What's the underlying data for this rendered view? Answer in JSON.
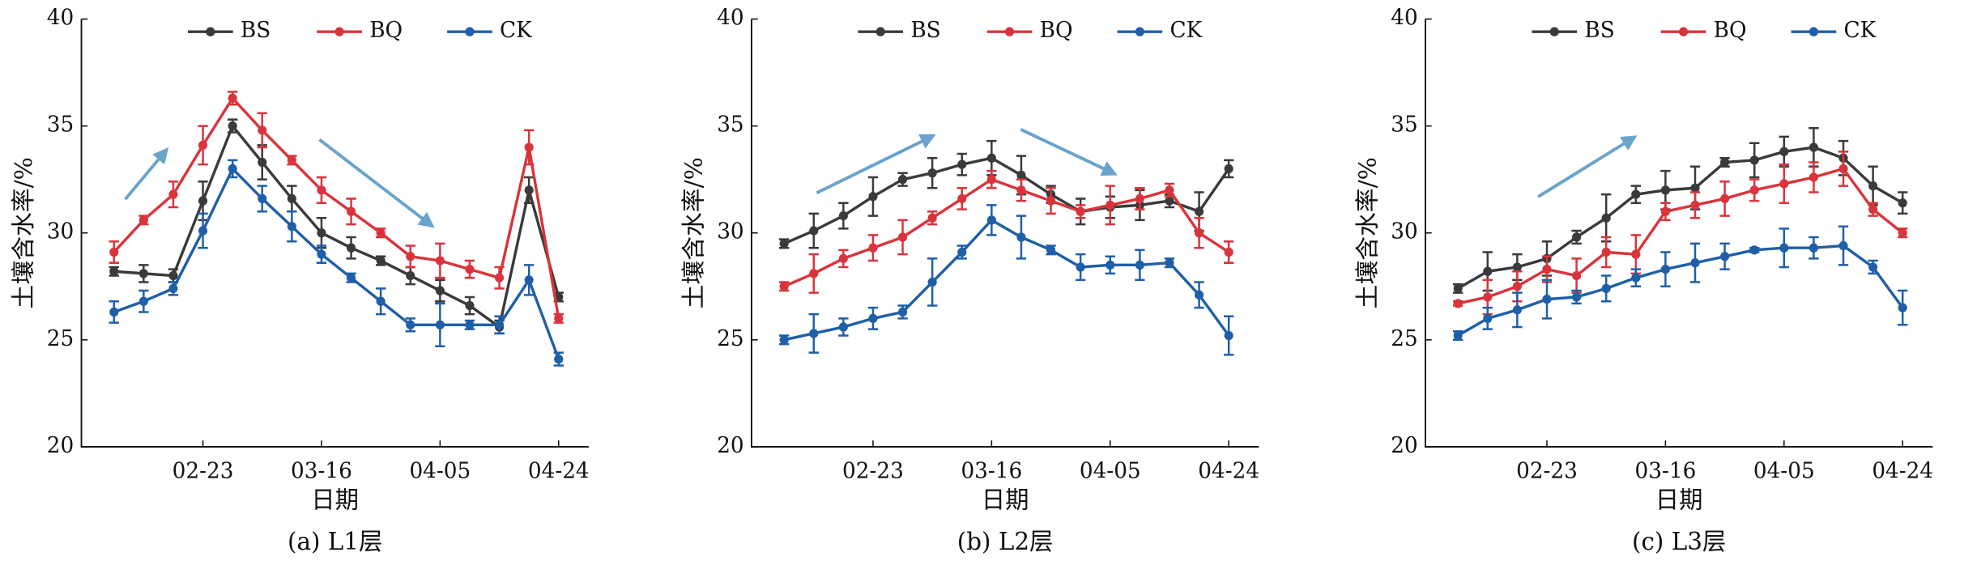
{
  "chart_data": [
    {
      "type": "line",
      "caption": "(a) L1层",
      "xlabel": "日期",
      "ylabel": "土壤含水率/%",
      "categories": [
        null,
        null,
        null,
        "02-23",
        null,
        null,
        null,
        "03-16",
        null,
        null,
        null,
        "04-05",
        null,
        null,
        null,
        "04-24"
      ],
      "ylim": [
        20,
        40
      ],
      "yticks": [
        20,
        25,
        30,
        35,
        40
      ],
      "series": [
        {
          "name": "BS",
          "color": "#3a3a3a",
          "values": [
            28.2,
            28.1,
            28.0,
            31.5,
            35.0,
            33.3,
            31.6,
            30.0,
            29.3,
            28.7,
            28.0,
            27.3,
            26.6,
            25.6,
            32.0,
            27.0
          ],
          "errors": [
            0.2,
            0.4,
            0.3,
            0.9,
            0.3,
            0.8,
            0.6,
            0.7,
            0.5,
            0.2,
            0.4,
            0.5,
            0.4,
            0.3,
            0.6,
            0.2
          ]
        },
        {
          "name": "BQ",
          "color": "#d9343c",
          "values": [
            29.1,
            30.6,
            31.8,
            34.1,
            36.3,
            34.8,
            33.4,
            32.0,
            31.0,
            30.0,
            28.9,
            28.7,
            28.3,
            27.9,
            34.0,
            26.0
          ],
          "errors": [
            0.5,
            0.2,
            0.6,
            0.9,
            0.3,
            0.8,
            0.2,
            0.6,
            0.6,
            0.2,
            0.5,
            0.8,
            0.4,
            0.5,
            0.8,
            0.2
          ]
        },
        {
          "name": "CK",
          "color": "#1f5fa8",
          "values": [
            26.3,
            26.8,
            27.4,
            30.1,
            33.0,
            31.6,
            30.3,
            29.0,
            27.9,
            26.8,
            25.7,
            25.7,
            25.7,
            25.7,
            27.8,
            24.1
          ],
          "errors": [
            0.5,
            0.5,
            0.3,
            0.8,
            0.4,
            0.6,
            0.7,
            0.4,
            0.2,
            0.6,
            0.3,
            1.0,
            0.2,
            0.4,
            0.7,
            0.3
          ]
        }
      ]
    },
    {
      "type": "line",
      "caption": "(b) L2层",
      "xlabel": "日期",
      "ylabel": "土壤含水率/%",
      "categories": [
        null,
        null,
        null,
        "02-23",
        null,
        null,
        null,
        "03-16",
        null,
        null,
        null,
        "04-05",
        null,
        null,
        null,
        "04-24"
      ],
      "ylim": [
        20,
        40
      ],
      "yticks": [
        20,
        25,
        30,
        35,
        40
      ],
      "series": [
        {
          "name": "BS",
          "color": "#3a3a3a",
          "values": [
            29.5,
            30.1,
            30.8,
            31.7,
            32.5,
            32.8,
            33.2,
            33.5,
            32.7,
            31.8,
            31.0,
            31.2,
            31.3,
            31.5,
            31.0,
            33.0
          ],
          "errors": [
            0.2,
            0.8,
            0.6,
            0.9,
            0.3,
            0.7,
            0.5,
            0.8,
            0.9,
            0.4,
            0.6,
            0.5,
            0.7,
            0.3,
            0.9,
            0.4
          ]
        },
        {
          "name": "BQ",
          "color": "#d9343c",
          "values": [
            27.5,
            28.1,
            28.8,
            29.3,
            29.8,
            30.7,
            31.6,
            32.5,
            32.0,
            31.5,
            31.0,
            31.3,
            31.6,
            32.0,
            30.0,
            29.1
          ],
          "errors": [
            0.2,
            0.9,
            0.4,
            0.6,
            0.8,
            0.3,
            0.5,
            0.4,
            0.5,
            0.6,
            0.3,
            0.9,
            0.5,
            0.3,
            0.7,
            0.5
          ]
        },
        {
          "name": "CK",
          "color": "#1f5fa8",
          "values": [
            25.0,
            25.3,
            25.6,
            26.0,
            26.3,
            27.7,
            29.1,
            30.6,
            29.8,
            29.2,
            28.4,
            28.5,
            28.5,
            28.6,
            27.1,
            25.2
          ],
          "errors": [
            0.2,
            0.9,
            0.4,
            0.5,
            0.3,
            1.1,
            0.3,
            0.7,
            1.0,
            0.2,
            0.6,
            0.4,
            0.7,
            0.2,
            0.6,
            0.9
          ]
        }
      ]
    },
    {
      "type": "line",
      "caption": "(c) L3层",
      "xlabel": "日期",
      "ylabel": "土壤含水率/%",
      "categories": [
        null,
        null,
        null,
        "02-23",
        null,
        null,
        null,
        "03-16",
        null,
        null,
        null,
        "04-05",
        null,
        null,
        null,
        "04-24"
      ],
      "ylim": [
        20,
        40
      ],
      "yticks": [
        20,
        25,
        30,
        35,
        40
      ],
      "series": [
        {
          "name": "BS",
          "color": "#3a3a3a",
          "values": [
            27.4,
            28.2,
            28.4,
            28.8,
            29.8,
            30.7,
            31.8,
            32.0,
            32.1,
            33.3,
            33.4,
            33.8,
            34.0,
            33.5,
            32.2,
            31.4
          ],
          "errors": [
            0.2,
            0.9,
            0.6,
            0.8,
            0.3,
            1.1,
            0.4,
            0.9,
            1.0,
            0.2,
            0.8,
            0.7,
            0.9,
            0.8,
            0.9,
            0.5
          ]
        },
        {
          "name": "BQ",
          "color": "#d9343c",
          "values": [
            26.7,
            27.0,
            27.5,
            28.3,
            28.0,
            29.1,
            29.0,
            31.0,
            31.3,
            31.6,
            32.0,
            32.3,
            32.6,
            33.0,
            31.1,
            30.0
          ],
          "errors": [
            0.1,
            0.8,
            0.7,
            0.6,
            0.8,
            0.7,
            0.9,
            0.4,
            0.6,
            0.8,
            0.5,
            0.9,
            0.7,
            0.8,
            0.3,
            0.2
          ]
        },
        {
          "name": "CK",
          "color": "#1f5fa8",
          "values": [
            25.2,
            26.0,
            26.4,
            26.9,
            27.0,
            27.4,
            27.9,
            28.3,
            28.6,
            28.9,
            29.2,
            29.3,
            29.3,
            29.4,
            28.4,
            26.5
          ],
          "errors": [
            0.2,
            0.5,
            0.8,
            0.9,
            0.3,
            0.6,
            0.4,
            0.8,
            0.9,
            0.6,
            0.1,
            0.9,
            0.5,
            0.9,
            0.3,
            0.8
          ]
        }
      ]
    }
  ]
}
